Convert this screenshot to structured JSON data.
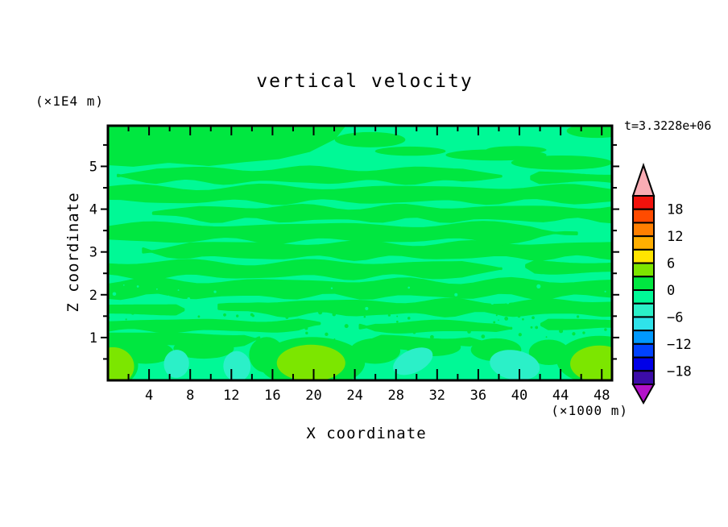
{
  "title": "vertical velocity",
  "time_label": "t=3.3228e+06",
  "axes": {
    "x_label": "X coordinate",
    "x_unit": "(×1000 m)",
    "y_label": "Z coordinate",
    "y_unit": "(×1E4 m)",
    "x_ticks": [
      4,
      8,
      12,
      16,
      20,
      24,
      28,
      32,
      36,
      40,
      44,
      48
    ],
    "x_minor_ticks": [
      2,
      6,
      10,
      14,
      18,
      22,
      26,
      30,
      34,
      38,
      42,
      46
    ],
    "x_range": [
      0,
      49
    ],
    "y_ticks": [
      1,
      2,
      3,
      4,
      5
    ],
    "y_minor_ticks": [
      0.5,
      1.5,
      2.5,
      3.5,
      4.5,
      5.5
    ],
    "y_range": [
      0,
      5.95
    ]
  },
  "colorbar": {
    "tick_labels": [
      "18",
      "12",
      "6",
      "0",
      "−6",
      "−12",
      "−18"
    ],
    "levels": [
      21,
      18,
      15,
      12,
      9,
      6,
      3,
      0,
      -3,
      -6,
      -9,
      -12,
      -15,
      -18,
      -21
    ],
    "box_colors": [
      "#f2120c",
      "#ff4b00",
      "#ff7f00",
      "#ffae00",
      "#ffe400",
      "#7ce600",
      "#00e740",
      "#00f996",
      "#2bf0c8",
      "#2fe3ea",
      "#0099ff",
      "#0042ff",
      "#0000e8",
      "#3c0ca8"
    ],
    "over_color": "#f9acb4",
    "under_color": "#b312c9",
    "outline_color": "#000000"
  },
  "chart_data": {
    "type": "heatmap",
    "subtype": "filled_contour",
    "title": "vertical velocity",
    "xlabel": "X coordinate",
    "ylabel": "Z coordinate",
    "x_unit_note": "(×1000 m)",
    "y_unit_note": "(×1E4 m)",
    "time_annotation": "t=3.3228e+06",
    "x_range": [
      0,
      49
    ],
    "z_range": [
      0,
      5.95
    ],
    "contour_levels": [
      -21,
      -18,
      -15,
      -12,
      -9,
      -6,
      -3,
      0,
      3,
      6,
      9,
      12,
      15,
      18,
      21
    ],
    "value_summary": "field mostly between -6 and +6: alternating horizontal bands of 0..3 (green) and -3..0 (spring green); near-surface extrema: +3..6 (chartreuse) and -6..-3 (aquamarine) blobs",
    "field": {
      "bg_color": "#00f996",
      "stripe_color": "#00e740",
      "chartreuse_color": "#7ce600",
      "aqua_color": "#2bf0c8",
      "topleft_region": [
        [
          0,
          0
        ],
        [
          0.47,
          0
        ],
        [
          0.45,
          0.05
        ],
        [
          0.4,
          0.1
        ],
        [
          0.34,
          0.128
        ],
        [
          0.27,
          0.14
        ],
        [
          0.2,
          0.155
        ],
        [
          0.12,
          0.143
        ],
        [
          0.05,
          0.158
        ],
        [
          0,
          0.152
        ]
      ],
      "green_patches": [
        [
          0.52,
          0.055,
          0.07,
          0.03
        ],
        [
          0.77,
          0.115,
          0.1,
          0.022
        ],
        [
          0.81,
          0.095,
          0.06,
          0.015
        ],
        [
          0.9,
          0.145,
          0.1,
          0.028
        ],
        [
          0.97,
          0.02,
          0.06,
          0.028
        ],
        [
          0.6,
          0.1,
          0.07,
          0.018
        ],
        [
          0.075,
          0.89,
          0.055,
          0.045
        ],
        [
          0.19,
          0.875,
          0.06,
          0.04
        ],
        [
          0.315,
          0.9,
          0.035,
          0.07
        ],
        [
          0.53,
          0.885,
          0.05,
          0.05
        ],
        [
          0.645,
          0.87,
          0.055,
          0.035
        ],
        [
          0.77,
          0.88,
          0.05,
          0.045
        ],
        [
          0.875,
          0.89,
          0.04,
          0.05
        ],
        [
          0.405,
          0.93,
          0.105,
          0.1
        ],
        [
          0.975,
          0.92,
          0.085,
          0.095
        ],
        [
          0.0,
          0.94,
          0.06,
          0.09
        ]
      ],
      "stripes": [
        {
          "y": 0.195,
          "th": 0.045,
          "x0": 0.02,
          "x1": 0.78,
          "amp": 0.012,
          "f": 4.0,
          "p": 1.0
        },
        {
          "y": 0.205,
          "th": 0.03,
          "x0": 0.84,
          "x1": 1.0,
          "amp": 0.008,
          "f": 3.0,
          "p": 2.0
        },
        {
          "y": 0.27,
          "th": 0.05,
          "x0": 0.0,
          "x1": 1.0,
          "amp": 0.014,
          "f": 3.5,
          "p": 4.0
        },
        {
          "y": 0.345,
          "th": 0.045,
          "x0": 0.09,
          "x1": 1.0,
          "amp": 0.013,
          "f": 4.5,
          "p": 0.5
        },
        {
          "y": 0.42,
          "th": 0.055,
          "x0": 0.0,
          "x1": 0.93,
          "amp": 0.015,
          "f": 3.2,
          "p": 2.5
        },
        {
          "y": 0.49,
          "th": 0.05,
          "x0": 0.07,
          "x1": 1.0,
          "amp": 0.013,
          "f": 4.0,
          "p": 5.0
        },
        {
          "y": 0.565,
          "th": 0.05,
          "x0": 0.0,
          "x1": 0.78,
          "amp": 0.014,
          "f": 3.6,
          "p": 1.5
        },
        {
          "y": 0.555,
          "th": 0.035,
          "x0": 0.83,
          "x1": 1.0,
          "amp": 0.01,
          "f": 2.8,
          "p": 3.0
        },
        {
          "y": 0.64,
          "th": 0.055,
          "x0": 0.0,
          "x1": 1.0,
          "amp": 0.015,
          "f": 4.2,
          "p": 2.2
        },
        {
          "y": 0.715,
          "th": 0.045,
          "x0": 0.22,
          "x1": 1.0,
          "amp": 0.013,
          "f": 4.6,
          "p": 4.2
        },
        {
          "y": 0.72,
          "th": 0.03,
          "x0": 0.0,
          "x1": 0.15,
          "amp": 0.008,
          "f": 2.5,
          "p": 1.0
        },
        {
          "y": 0.785,
          "th": 0.035,
          "x0": 0.0,
          "x1": 0.42,
          "amp": 0.01,
          "f": 4.0,
          "p": 0.8
        },
        {
          "y": 0.79,
          "th": 0.03,
          "x0": 0.5,
          "x1": 0.8,
          "amp": 0.009,
          "f": 3.5,
          "p": 2.8
        },
        {
          "y": 0.78,
          "th": 0.03,
          "x0": 0.86,
          "x1": 1.0,
          "amp": 0.008,
          "f": 3.0,
          "p": 1.4
        },
        {
          "y": 0.84,
          "th": 0.04,
          "x0": 0.0,
          "x1": 0.3,
          "amp": 0.012,
          "f": 3.4,
          "p": 3.3
        },
        {
          "y": 0.85,
          "th": 0.035,
          "x0": 0.52,
          "x1": 0.74,
          "amp": 0.01,
          "f": 3.4,
          "p": 0.2
        }
      ],
      "chartreuse_blobs": [
        [
          0.01,
          0.945,
          0.042,
          0.075,
          0
        ],
        [
          0.403,
          0.932,
          0.068,
          0.072,
          0
        ],
        [
          0.975,
          0.935,
          0.058,
          0.072,
          0
        ]
      ],
      "aqua_blobs": [
        [
          0.136,
          0.935,
          0.025,
          0.055,
          8
        ],
        [
          0.256,
          0.945,
          0.027,
          0.06,
          -5
        ],
        [
          0.605,
          0.925,
          0.042,
          0.045,
          -25
        ],
        [
          0.807,
          0.94,
          0.05,
          0.058,
          10
        ]
      ],
      "speckle": {
        "seed": 7,
        "green_count": 60,
        "green_band": [
          0.72,
          0.84
        ],
        "spring_count": 18,
        "spring_band": [
          0.62,
          0.72
        ],
        "rmin": 0.8,
        "rmax": 2.6
      }
    }
  },
  "colors": {
    "text": "#000000",
    "frame": "#000000",
    "page_bg": "#ffffff"
  }
}
